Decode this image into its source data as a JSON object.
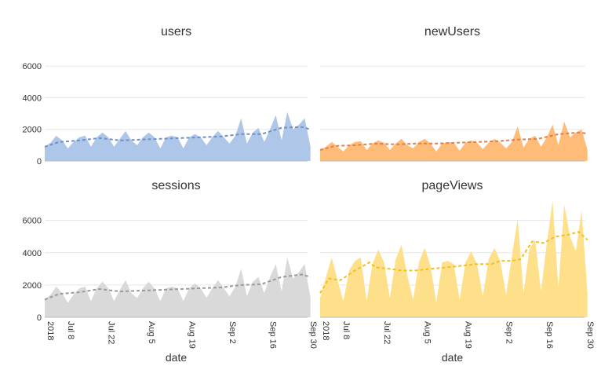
{
  "chart_data": {
    "type": "area",
    "ylim": [
      0,
      7200
    ],
    "y_ticks": [
      0,
      2000,
      4000,
      6000
    ],
    "xlabel": "date",
    "x_range": [
      "2018-07-01",
      "2018-09-30"
    ],
    "x_ticks": [
      {
        "date": "2018-07-01",
        "label": "2018"
      },
      {
        "date": "2018-07-08",
        "label": "Jul 8"
      },
      {
        "date": "2018-07-22",
        "label": "Jul 22"
      },
      {
        "date": "2018-08-05",
        "label": "Aug 5"
      },
      {
        "date": "2018-08-19",
        "label": "Aug 19"
      },
      {
        "date": "2018-09-02",
        "label": "Sep 2"
      },
      {
        "date": "2018-09-16",
        "label": "Sep 16"
      },
      {
        "date": "2018-09-30",
        "label": "Sep 30"
      }
    ],
    "grid": true,
    "panels": [
      {
        "title": "users",
        "fill": "#aec7e8",
        "trend_color": "#6e90c8",
        "area_points": [
          [
            0,
            900
          ],
          [
            2,
            1150
          ],
          [
            4,
            1600
          ],
          [
            6,
            1300
          ],
          [
            8,
            800
          ],
          [
            10,
            1200
          ],
          [
            12,
            1500
          ],
          [
            14,
            1600
          ],
          [
            16,
            900
          ],
          [
            18,
            1500
          ],
          [
            20,
            1800
          ],
          [
            22,
            1500
          ],
          [
            24,
            900
          ],
          [
            26,
            1400
          ],
          [
            28,
            1900
          ],
          [
            30,
            1300
          ],
          [
            32,
            1000
          ],
          [
            34,
            1500
          ],
          [
            36,
            1800
          ],
          [
            38,
            1500
          ],
          [
            40,
            800
          ],
          [
            42,
            1500
          ],
          [
            44,
            1600
          ],
          [
            46,
            1500
          ],
          [
            48,
            800
          ],
          [
            50,
            1500
          ],
          [
            52,
            1700
          ],
          [
            54,
            1500
          ],
          [
            56,
            1000
          ],
          [
            58,
            1500
          ],
          [
            60,
            1900
          ],
          [
            62,
            1500
          ],
          [
            64,
            1100
          ],
          [
            66,
            1600
          ],
          [
            68,
            2700
          ],
          [
            70,
            1100
          ],
          [
            72,
            1800
          ],
          [
            74,
            2100
          ],
          [
            76,
            1200
          ],
          [
            78,
            2000
          ],
          [
            80,
            2900
          ],
          [
            82,
            1300
          ],
          [
            84,
            3100
          ],
          [
            86,
            2000
          ],
          [
            88,
            2300
          ],
          [
            90,
            2700
          ],
          [
            92,
            900
          ]
        ],
        "trend_points": [
          [
            0,
            900
          ],
          [
            5,
            1200
          ],
          [
            12,
            1300
          ],
          [
            19,
            1450
          ],
          [
            26,
            1300
          ],
          [
            33,
            1350
          ],
          [
            40,
            1400
          ],
          [
            47,
            1450
          ],
          [
            54,
            1500
          ],
          [
            61,
            1550
          ],
          [
            68,
            1700
          ],
          [
            75,
            1700
          ],
          [
            82,
            2100
          ],
          [
            89,
            2150
          ],
          [
            92,
            2000
          ]
        ]
      },
      {
        "title": "newUsers",
        "fill": "#ffbb78",
        "trend_color": "#e0804a",
        "area_points": [
          [
            0,
            700
          ],
          [
            2,
            900
          ],
          [
            4,
            1200
          ],
          [
            6,
            900
          ],
          [
            8,
            600
          ],
          [
            10,
            1000
          ],
          [
            12,
            1200
          ],
          [
            14,
            1250
          ],
          [
            16,
            700
          ],
          [
            18,
            1100
          ],
          [
            20,
            1300
          ],
          [
            22,
            1150
          ],
          [
            24,
            700
          ],
          [
            26,
            1100
          ],
          [
            28,
            1400
          ],
          [
            30,
            1000
          ],
          [
            32,
            800
          ],
          [
            34,
            1200
          ],
          [
            36,
            1400
          ],
          [
            38,
            1100
          ],
          [
            40,
            600
          ],
          [
            42,
            1100
          ],
          [
            44,
            1200
          ],
          [
            46,
            1150
          ],
          [
            48,
            650
          ],
          [
            50,
            1150
          ],
          [
            52,
            1300
          ],
          [
            54,
            1150
          ],
          [
            56,
            750
          ],
          [
            58,
            1150
          ],
          [
            60,
            1400
          ],
          [
            62,
            1150
          ],
          [
            64,
            800
          ],
          [
            66,
            1200
          ],
          [
            68,
            2200
          ],
          [
            70,
            850
          ],
          [
            72,
            1400
          ],
          [
            74,
            1600
          ],
          [
            76,
            900
          ],
          [
            78,
            1500
          ],
          [
            80,
            2300
          ],
          [
            82,
            1000
          ],
          [
            84,
            2500
          ],
          [
            86,
            1500
          ],
          [
            88,
            1800
          ],
          [
            90,
            2000
          ],
          [
            92,
            700
          ]
        ],
        "trend_points": [
          [
            0,
            700
          ],
          [
            5,
            950
          ],
          [
            12,
            1000
          ],
          [
            19,
            1100
          ],
          [
            26,
            1050
          ],
          [
            33,
            1100
          ],
          [
            40,
            1100
          ],
          [
            47,
            1150
          ],
          [
            54,
            1200
          ],
          [
            61,
            1250
          ],
          [
            68,
            1350
          ],
          [
            75,
            1400
          ],
          [
            82,
            1700
          ],
          [
            89,
            1800
          ],
          [
            92,
            1750
          ]
        ]
      },
      {
        "title": "sessions",
        "fill": "#d9d9d9",
        "trend_color": "#9a9a9a",
        "area_points": [
          [
            0,
            1100
          ],
          [
            2,
            1400
          ],
          [
            4,
            1900
          ],
          [
            6,
            1500
          ],
          [
            8,
            900
          ],
          [
            10,
            1400
          ],
          [
            12,
            1800
          ],
          [
            14,
            1900
          ],
          [
            16,
            1000
          ],
          [
            18,
            1800
          ],
          [
            20,
            2200
          ],
          [
            22,
            1800
          ],
          [
            24,
            1000
          ],
          [
            26,
            1700
          ],
          [
            28,
            2300
          ],
          [
            30,
            1500
          ],
          [
            32,
            1200
          ],
          [
            34,
            1800
          ],
          [
            36,
            2200
          ],
          [
            38,
            1800
          ],
          [
            40,
            1000
          ],
          [
            42,
            1800
          ],
          [
            44,
            1900
          ],
          [
            46,
            1800
          ],
          [
            48,
            1000
          ],
          [
            50,
            1800
          ],
          [
            52,
            2100
          ],
          [
            54,
            1800
          ],
          [
            56,
            1200
          ],
          [
            58,
            1800
          ],
          [
            60,
            2300
          ],
          [
            62,
            1800
          ],
          [
            64,
            1300
          ],
          [
            66,
            1900
          ],
          [
            68,
            3000
          ],
          [
            70,
            1300
          ],
          [
            72,
            2200
          ],
          [
            74,
            2500
          ],
          [
            76,
            1500
          ],
          [
            78,
            2500
          ],
          [
            80,
            3300
          ],
          [
            82,
            1600
          ],
          [
            84,
            3700
          ],
          [
            86,
            2400
          ],
          [
            88,
            2800
          ],
          [
            90,
            3300
          ],
          [
            92,
            1200
          ]
        ],
        "trend_points": [
          [
            0,
            1100
          ],
          [
            5,
            1450
          ],
          [
            12,
            1550
          ],
          [
            19,
            1750
          ],
          [
            26,
            1600
          ],
          [
            33,
            1650
          ],
          [
            40,
            1700
          ],
          [
            47,
            1750
          ],
          [
            54,
            1800
          ],
          [
            61,
            1850
          ],
          [
            68,
            2000
          ],
          [
            75,
            2050
          ],
          [
            82,
            2500
          ],
          [
            89,
            2650
          ],
          [
            92,
            2500
          ]
        ]
      },
      {
        "title": "pageViews",
        "fill": "#ffe08a",
        "trend_color": "#f0c020",
        "area_points": [
          [
            0,
            1200
          ],
          [
            2,
            2500
          ],
          [
            4,
            3700
          ],
          [
            6,
            2300
          ],
          [
            8,
            1000
          ],
          [
            10,
            2900
          ],
          [
            12,
            3500
          ],
          [
            14,
            3700
          ],
          [
            16,
            1000
          ],
          [
            18,
            3300
          ],
          [
            20,
            4200
          ],
          [
            22,
            3400
          ],
          [
            24,
            1200
          ],
          [
            26,
            3600
          ],
          [
            28,
            4500
          ],
          [
            30,
            2600
          ],
          [
            32,
            1100
          ],
          [
            34,
            3400
          ],
          [
            36,
            4300
          ],
          [
            38,
            3200
          ],
          [
            40,
            900
          ],
          [
            42,
            3400
          ],
          [
            44,
            3500
          ],
          [
            46,
            3300
          ],
          [
            48,
            1100
          ],
          [
            50,
            3400
          ],
          [
            52,
            4100
          ],
          [
            54,
            3300
          ],
          [
            56,
            1300
          ],
          [
            58,
            3600
          ],
          [
            60,
            4300
          ],
          [
            62,
            3500
          ],
          [
            64,
            1400
          ],
          [
            66,
            3800
          ],
          [
            68,
            6100
          ],
          [
            70,
            1500
          ],
          [
            72,
            4200
          ],
          [
            74,
            4800
          ],
          [
            76,
            1600
          ],
          [
            78,
            4600
          ],
          [
            80,
            7200
          ],
          [
            82,
            1800
          ],
          [
            84,
            7000
          ],
          [
            86,
            5000
          ],
          [
            88,
            4100
          ],
          [
            90,
            6600
          ],
          [
            92,
            1500
          ]
        ],
        "trend_points": [
          [
            0,
            1500
          ],
          [
            3,
            2400
          ],
          [
            7,
            2300
          ],
          [
            12,
            2900
          ],
          [
            17,
            3400
          ],
          [
            19,
            3100
          ],
          [
            24,
            3000
          ],
          [
            28,
            2900
          ],
          [
            33,
            2900
          ],
          [
            38,
            3000
          ],
          [
            44,
            3100
          ],
          [
            49,
            3200
          ],
          [
            54,
            3300
          ],
          [
            59,
            3300
          ],
          [
            62,
            3500
          ],
          [
            66,
            3500
          ],
          [
            69,
            3600
          ],
          [
            73,
            4700
          ],
          [
            77,
            4600
          ],
          [
            81,
            5000
          ],
          [
            85,
            5100
          ],
          [
            89,
            5300
          ],
          [
            92,
            4800
          ]
        ]
      }
    ]
  }
}
